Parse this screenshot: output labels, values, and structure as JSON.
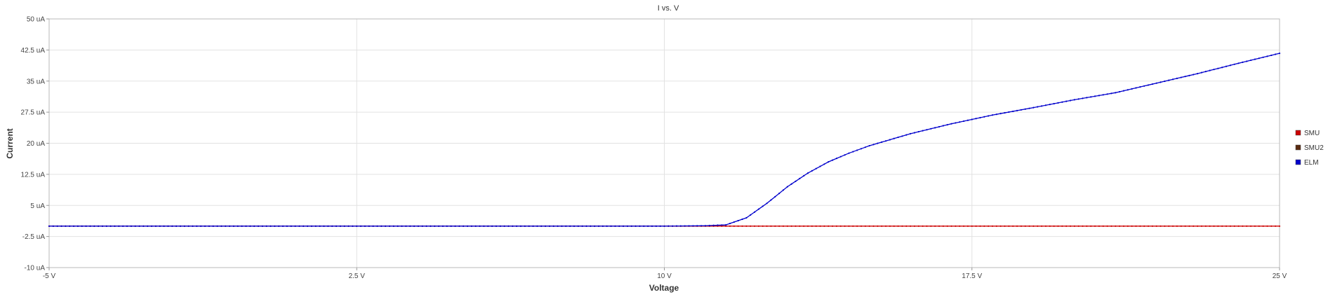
{
  "chart_data": {
    "type": "line",
    "title": "I vs. V",
    "xlabel": "Voltage",
    "ylabel": "Current",
    "xlim": [
      -5,
      25
    ],
    "ylim": [
      -10,
      50
    ],
    "grid": true,
    "legend_position": "right",
    "x_ticks": [
      -5,
      2.5,
      10,
      17.5,
      25
    ],
    "x_tick_labels": [
      "-5 V",
      "2.5 V",
      "10 V",
      "17.5 V",
      "25 V"
    ],
    "y_ticks": [
      -10,
      -2.5,
      5,
      12.5,
      20,
      27.5,
      35,
      42.5,
      50
    ],
    "y_tick_labels": [
      "-10 uA",
      "-2.5 uA",
      "5 uA",
      "12.5 uA",
      "20 uA",
      "27.5 uA",
      "35 uA",
      "42.5 uA",
      "50 uA"
    ],
    "series": [
      {
        "name": "SMU",
        "color": "#cc0000",
        "x": [
          -5,
          0,
          5,
          10,
          12,
          15,
          17.5,
          20,
          22.5,
          25
        ],
        "y": [
          0,
          0,
          0,
          0,
          0,
          0,
          0,
          0,
          0,
          0
        ]
      },
      {
        "name": "SMU2",
        "color": "#5a2a10",
        "x": [],
        "y": []
      },
      {
        "name": "ELM",
        "color": "#0000cc",
        "x": [
          -5,
          0,
          5,
          10,
          11,
          11.5,
          12,
          12.5,
          13,
          13.5,
          14,
          14.5,
          15,
          16,
          17,
          18,
          19,
          20,
          21,
          22,
          23,
          24,
          25
        ],
        "y": [
          0,
          0,
          0,
          0,
          0.1,
          0.3,
          2,
          5.5,
          9.5,
          12.8,
          15.5,
          17.6,
          19.4,
          22.3,
          24.7,
          26.8,
          28.6,
          30.5,
          32.2,
          34.5,
          36.8,
          39.3,
          41.7
        ]
      }
    ]
  }
}
